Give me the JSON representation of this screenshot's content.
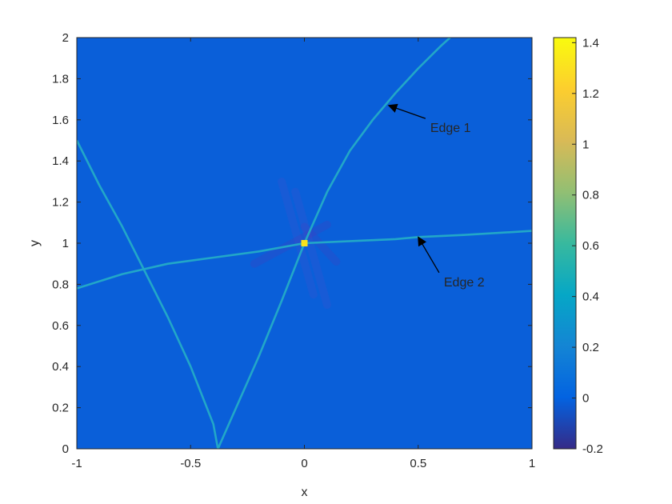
{
  "chart_data": {
    "type": "heatmap",
    "title": "",
    "xlabel": "x",
    "ylabel": "y",
    "xlim": [
      -1,
      1
    ],
    "ylim": [
      0,
      2
    ],
    "x_ticks": [
      "-1",
      "-0.5",
      "0",
      "0.5",
      "1"
    ],
    "x_tick_values": [
      -1,
      -0.5,
      0,
      0.5,
      1
    ],
    "y_ticks": [
      "0",
      "0.2",
      "0.4",
      "0.6",
      "0.8",
      "1",
      "1.2",
      "1.4",
      "1.6",
      "1.8",
      "2"
    ],
    "y_tick_values": [
      0,
      0.2,
      0.4,
      0.6,
      0.8,
      1,
      1.2,
      1.4,
      1.6,
      1.8,
      2
    ],
    "background_value": 0,
    "colormap": "parula",
    "colorbar": {
      "range": [
        -0.2,
        1.42
      ],
      "ticks": [
        "-0.2",
        "0",
        "0.2",
        "0.4",
        "0.6",
        "0.8",
        "1",
        "1.2",
        "1.4"
      ],
      "tick_values": [
        -0.2,
        0,
        0.2,
        0.4,
        0.6,
        0.8,
        1,
        1.2,
        1.4
      ]
    },
    "edge_value": 0.3,
    "curves": [
      {
        "id": "edge-1",
        "value": 0.3,
        "points": [
          [
            -0.38,
            0.0
          ],
          [
            -0.2,
            0.45
          ],
          [
            -0.1,
            0.72
          ],
          [
            0.0,
            1.0
          ],
          [
            0.1,
            1.25
          ],
          [
            0.2,
            1.45
          ],
          [
            0.3,
            1.6
          ],
          [
            0.4,
            1.73
          ],
          [
            0.5,
            1.85
          ],
          [
            0.6,
            1.96
          ],
          [
            0.64,
            2.0
          ]
        ]
      },
      {
        "id": "edge-2",
        "value": 0.3,
        "points": [
          [
            -1.0,
            0.78
          ],
          [
            -0.8,
            0.85
          ],
          [
            -0.6,
            0.9
          ],
          [
            -0.4,
            0.93
          ],
          [
            -0.2,
            0.96
          ],
          [
            0.0,
            1.0
          ],
          [
            0.2,
            1.01
          ],
          [
            0.4,
            1.02
          ],
          [
            0.5,
            1.03
          ],
          [
            0.7,
            1.04
          ],
          [
            1.0,
            1.06
          ]
        ]
      },
      {
        "id": "edge-v-left",
        "value": 0.3,
        "points": [
          [
            -1.0,
            1.5
          ],
          [
            -0.9,
            1.28
          ],
          [
            -0.8,
            1.08
          ],
          [
            -0.7,
            0.86
          ],
          [
            -0.6,
            0.64
          ],
          [
            -0.5,
            0.4
          ],
          [
            -0.4,
            0.12
          ],
          [
            -0.38,
            0.0
          ]
        ]
      }
    ],
    "peak": {
      "x": 0.0,
      "y": 1.0,
      "value": 1.42
    },
    "annotations": [
      {
        "text": "Edge 1",
        "target": [
          0.37,
          1.67
        ],
        "text_pos": [
          0.56,
          1.56
        ]
      },
      {
        "text": "Edge 2",
        "target": [
          0.5,
          1.03
        ],
        "text_pos": [
          0.62,
          0.81
        ]
      }
    ]
  },
  "colors": {
    "background": "#0A5FD9",
    "edge": "#22A7C8",
    "peak": "#F8E11C",
    "axis": "#262626",
    "parula": [
      "#352A87",
      "#0363E1",
      "#1485D4",
      "#06A7C6",
      "#38B99E",
      "#92BF73",
      "#D9BA56",
      "#FCCE2E",
      "#F9FB0E"
    ]
  }
}
